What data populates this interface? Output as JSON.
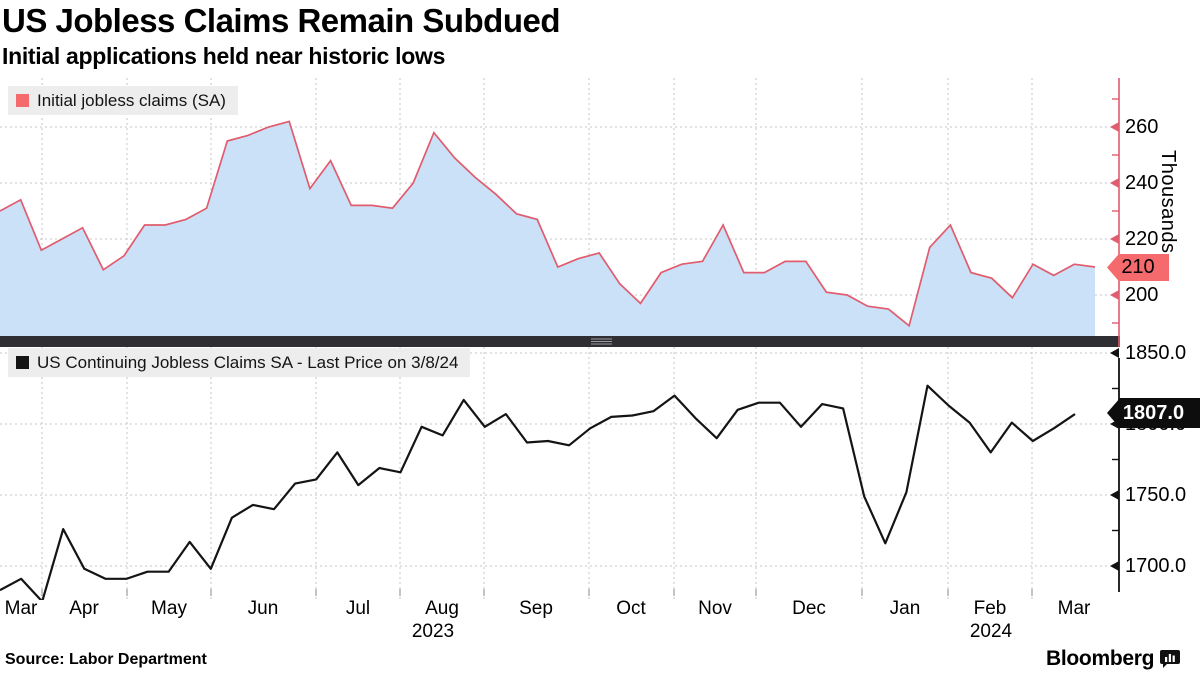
{
  "header": {
    "title": "US Jobless Claims Remain Subdued",
    "subtitle": "Initial applications held near historic lows"
  },
  "footer": {
    "source": "Source: Labor Department",
    "brand": "Bloomberg"
  },
  "chart_data": {
    "type": "multi-panel",
    "x_months": [
      "Mar",
      "Apr",
      "May",
      "Jun",
      "Jul",
      "Aug",
      "Sep",
      "Oct",
      "Nov",
      "Dec",
      "Jan",
      "Feb",
      "Mar"
    ],
    "x_years": [
      "2023",
      "2024"
    ],
    "panels": [
      {
        "type": "area",
        "legend": "Initial jobless claims (SA)",
        "ylabel": "Thousands",
        "yticks": [
          "260",
          "240",
          "220",
          "200"
        ],
        "ytick_values": [
          260,
          240,
          220,
          200
        ],
        "minor_tick_values": [
          270,
          250,
          230,
          210,
          190
        ],
        "ylim": [
          186,
          277
        ],
        "last_value": 210,
        "last_label": "210",
        "line_color": "#e05c6e",
        "fill_color": "#cbe1f8",
        "badge_color": "#f46a6d",
        "values": [
          230,
          234,
          216,
          220,
          224,
          209,
          214,
          225,
          225,
          227,
          231,
          255,
          257,
          260,
          262,
          238,
          248,
          232,
          232,
          231,
          240,
          258,
          249,
          242,
          236,
          229,
          227,
          210,
          213,
          215,
          204,
          197,
          208,
          211,
          212,
          225,
          208,
          208,
          212,
          212,
          201,
          200,
          196,
          195,
          189,
          217,
          225,
          208,
          206,
          199,
          211,
          207,
          211,
          210
        ]
      },
      {
        "type": "line",
        "legend": "US Continuing Jobless Claims SA - Last Price on 3/8/24",
        "yticks": [
          "1850.0",
          "1800.0",
          "1750.0",
          "1700.0"
        ],
        "ytick_values": [
          1850,
          1800,
          1750,
          1700
        ],
        "minor_tick_values": [
          1825,
          1775,
          1725
        ],
        "ylim": [
          1675,
          1852
        ],
        "last_value": 1807.0,
        "last_label": "1807.0",
        "line_color": "#141414",
        "badge_color": "#0d0d0d",
        "values": [
          1683,
          1691,
          1675,
          1726,
          1698,
          1691,
          1691,
          1696,
          1696,
          1717,
          1698,
          1734,
          1743,
          1740,
          1758,
          1761,
          1780,
          1757,
          1769,
          1766,
          1798,
          1792,
          1817,
          1798,
          1807,
          1787,
          1788,
          1785,
          1797,
          1805,
          1806,
          1809,
          1820,
          1804,
          1790,
          1810,
          1815,
          1815,
          1798,
          1814,
          1811,
          1749,
          1716,
          1752,
          1827,
          1813,
          1801,
          1780,
          1801,
          1788,
          1797,
          1807
        ]
      }
    ]
  }
}
